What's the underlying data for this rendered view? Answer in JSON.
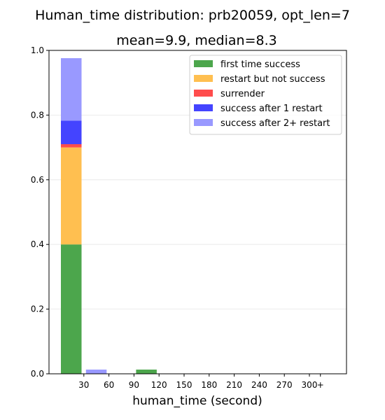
{
  "chart_data": {
    "type": "bar",
    "stacked": true,
    "title": "Human_time distribution: prb20059, opt_len=7",
    "subtitle": "mean=9.9, median=8.3",
    "xlabel": "human_time (second)",
    "ylabel": "",
    "ylim": [
      0,
      1.0
    ],
    "yticks": [
      "0.0",
      "0.2",
      "0.4",
      "0.6",
      "0.8",
      "1.0"
    ],
    "xticks": [
      "30",
      "60",
      "90",
      "120",
      "150",
      "180",
      "210",
      "240",
      "270",
      "300",
      "+"
    ],
    "grid": "horizontal",
    "legend_position": "top-right",
    "categories": [
      "0-30",
      "30-60",
      "60-90",
      "90-120",
      "120-150",
      "150-180",
      "180-210",
      "210-240",
      "240-270",
      "270-300",
      "300+"
    ],
    "series": [
      {
        "name": "first time success",
        "color": "#4ca64c",
        "values": [
          0.4,
          0,
          0,
          0.013,
          0,
          0,
          0,
          0,
          0,
          0,
          0
        ]
      },
      {
        "name": "restart but not success",
        "color": "#ffbf50",
        "values": [
          0.3,
          0,
          0,
          0,
          0,
          0,
          0,
          0,
          0,
          0,
          0
        ]
      },
      {
        "name": "surrender",
        "color": "#ff4c4c",
        "values": [
          0.01,
          0,
          0,
          0,
          0,
          0,
          0,
          0,
          0,
          0,
          0
        ]
      },
      {
        "name": "success after 1 restart",
        "color": "#4444ff",
        "values": [
          0.073,
          0,
          0,
          0,
          0,
          0,
          0,
          0,
          0,
          0,
          0
        ]
      },
      {
        "name": "success after 2+ restart",
        "color": "#9999ff",
        "values": [
          0.193,
          0.013,
          0,
          0,
          0,
          0,
          0,
          0,
          0,
          0,
          0
        ]
      }
    ]
  }
}
